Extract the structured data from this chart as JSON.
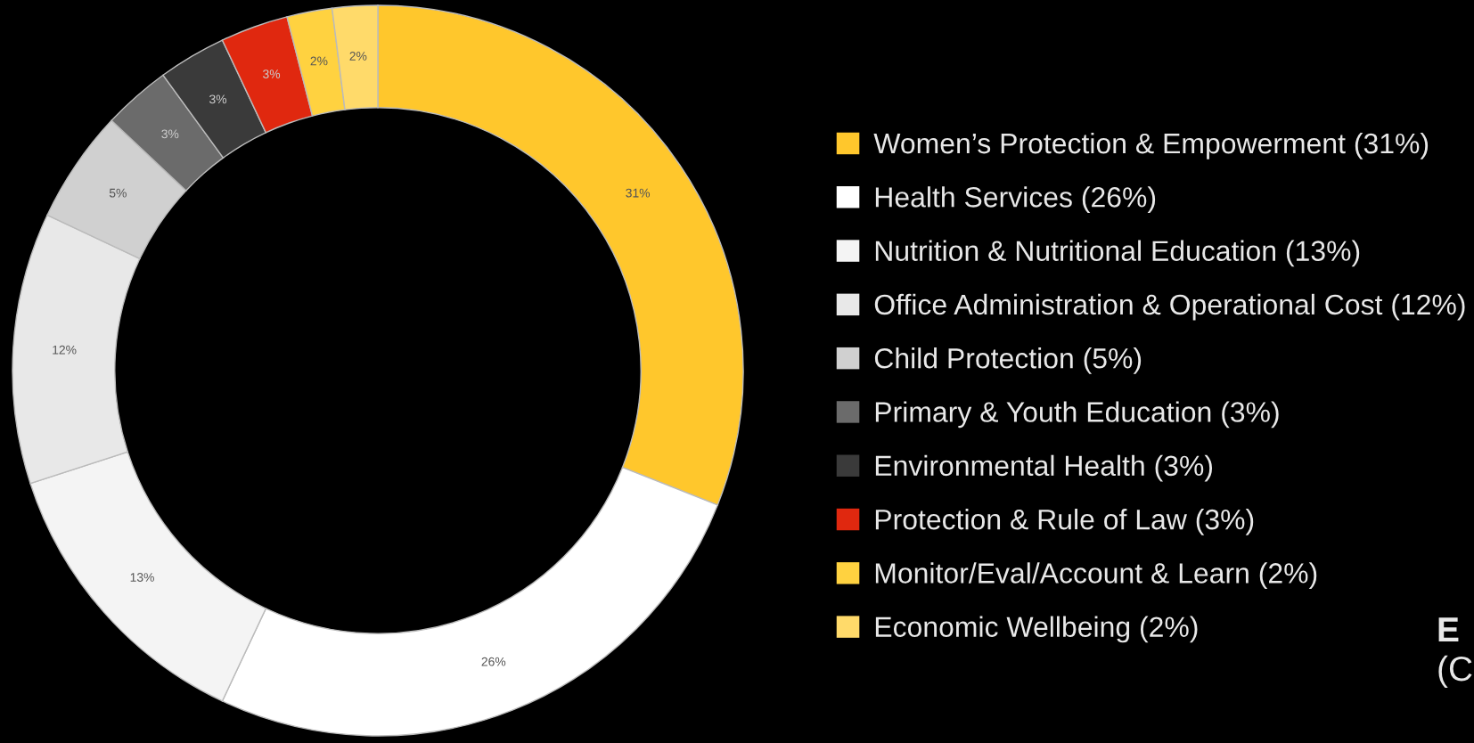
{
  "chart_data": {
    "type": "donut",
    "categories": [
      "Women’s Protection & Empowerment (31%)",
      "Health Services (26%)",
      "Nutrition & Nutritional Education (13%)",
      "Office Administration & Operational Cost (12%)",
      "Child Protection (5%)",
      "Primary & Youth Education (3%)",
      "Environmental Health (3%)",
      "Protection & Rule of Law (3%)",
      "Monitor/Eval/Account & Learn (2%)",
      "Economic Wellbeing (2%)"
    ],
    "values": [
      31,
      26,
      13,
      12,
      5,
      3,
      3,
      3,
      2,
      2
    ],
    "value_labels": [
      "31%",
      "26%",
      "13%",
      "12%",
      "5%",
      "3%",
      "3%",
      "3%",
      "2%",
      "2%"
    ],
    "colors": [
      "#ffc72c",
      "#ffffff",
      "#f4f4f4",
      "#e8e8e8",
      "#d0d0d0",
      "#6b6b6b",
      "#3a3a3a",
      "#e0280f",
      "#ffd240",
      "#ffda6a"
    ],
    "legend": "right",
    "annotations": [
      "E",
      "(C"
    ]
  }
}
